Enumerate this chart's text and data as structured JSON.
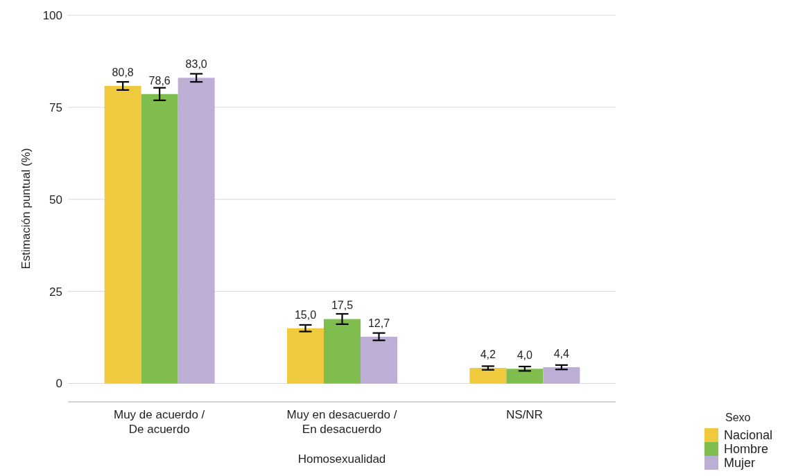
{
  "chart_data": {
    "type": "bar",
    "xlabel": "Homosexualidad",
    "ylabel": "Estimación puntual (%)",
    "legend_title": "Sexo",
    "categories": [
      "Muy de acuerdo /\nDe acuerdo",
      "Muy en desacuerdo /\nEn desacuerdo",
      "NS/NR"
    ],
    "series": [
      {
        "name": "Nacional",
        "color": "#f0ca3e",
        "values": [
          80.8,
          15.0,
          4.2
        ],
        "errors": [
          1.1,
          0.9,
          0.5
        ],
        "value_labels": [
          "80,8",
          "15,0",
          "4,2"
        ]
      },
      {
        "name": "Hombre",
        "color": "#7fbd4f",
        "values": [
          78.6,
          17.5,
          4.0
        ],
        "errors": [
          1.7,
          1.4,
          0.6
        ],
        "value_labels": [
          "78,6",
          "17,5",
          "4,0"
        ]
      },
      {
        "name": "Mujer",
        "color": "#bcaed4",
        "values": [
          83.0,
          12.7,
          4.4
        ],
        "errors": [
          1.1,
          1.0,
          0.6
        ],
        "value_labels": [
          "83,0",
          "12,7",
          "4,4"
        ]
      }
    ],
    "ylim": [
      -5,
      100
    ],
    "yticks": [
      0,
      25,
      50,
      75,
      100
    ],
    "grid": "y",
    "legend": "bottom right"
  }
}
